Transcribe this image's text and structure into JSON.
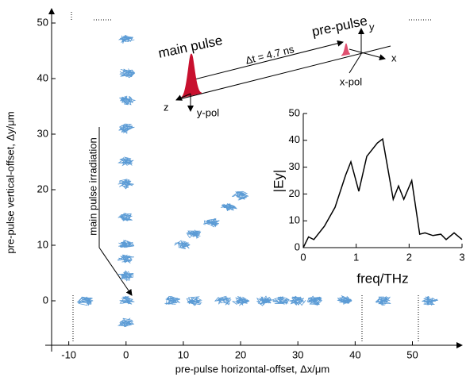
{
  "chart_data": [
    {
      "type": "scatter",
      "xlabel": "pre-pulse horizontal-offset, Δx/μm",
      "ylabel": "pre-pulse vertical-offset, Δy/μm",
      "x": [
        0,
        0,
        0,
        0,
        0,
        0,
        0,
        0,
        0,
        0,
        0,
        0,
        -7,
        8,
        12,
        17,
        20,
        24,
        27,
        30,
        33,
        38,
        45,
        53,
        10,
        12,
        15,
        18,
        20
      ],
      "values": [
        47,
        41,
        36,
        31,
        25,
        21,
        15,
        10,
        7.5,
        4.5,
        0,
        -4,
        0,
        0,
        0,
        0,
        0,
        0,
        0,
        0,
        0,
        0,
        0,
        0,
        10,
        12,
        14,
        17,
        19
      ],
      "color": "#5b9bd5",
      "xlim": [
        -13,
        57
      ],
      "ylim": [
        -8,
        52
      ],
      "xticks": [
        -10,
        0,
        10,
        20,
        30,
        40,
        50
      ],
      "yticks": [
        0,
        10,
        20,
        30,
        40,
        50
      ],
      "annotations": [
        "main pulse",
        "pre-pulse",
        "Δt = 4.7 ns",
        "x",
        "y",
        "z",
        "x-pol",
        "y-pol",
        "main pulse irradiation"
      ]
    },
    {
      "type": "line",
      "xlabel": "freq/THz",
      "ylabel": "|Ey|",
      "x": [
        0,
        0.1,
        0.2,
        0.4,
        0.6,
        0.8,
        0.9,
        1.05,
        1.2,
        1.4,
        1.5,
        1.7,
        1.8,
        1.9,
        2.05,
        2.2,
        2.3,
        2.45,
        2.6,
        2.7,
        2.85,
        3.0
      ],
      "values": [
        0,
        4,
        3,
        8,
        15,
        27,
        32,
        21,
        34,
        39,
        40.5,
        18,
        23,
        18,
        25,
        5,
        5.5,
        4.5,
        5,
        3,
        5.5,
        3
      ],
      "color": "#000000",
      "xlim": [
        0,
        3
      ],
      "ylim": [
        0,
        50
      ],
      "xticks": [
        0,
        1,
        2,
        3
      ],
      "yticks": [
        0,
        10,
        20,
        30,
        40,
        50
      ]
    }
  ]
}
